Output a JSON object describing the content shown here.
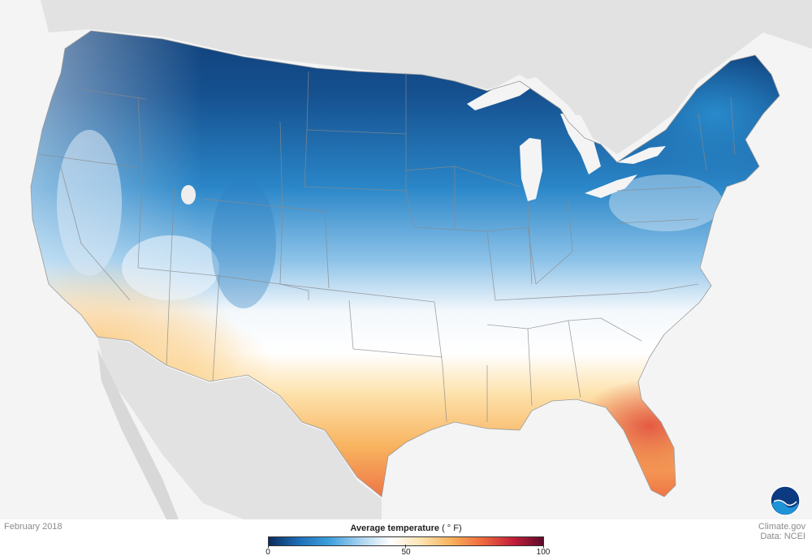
{
  "map": {
    "date": "February 2018",
    "credit_site": "Climate.gov",
    "credit_data": "Data: NCEI",
    "legend": {
      "title": "Average temperature",
      "unit": "( ° F)",
      "ticks": [
        "0",
        "50",
        "100"
      ],
      "min": 0,
      "max": 100,
      "colors": [
        "#0b2c5c",
        "#1f6fb8",
        "#3ea0dc",
        "#a8d2ef",
        "#ffffff",
        "#fde3b0",
        "#f7b05a",
        "#ef6a3e",
        "#c41f3a",
        "#5c0a2a"
      ]
    },
    "logo_text": "NOAA",
    "colors": {
      "background": "#f4f4f4",
      "land_outside": "#e2e2e2",
      "state_border": "#8a8a8a",
      "lakes": "#f4f4f4"
    }
  }
}
